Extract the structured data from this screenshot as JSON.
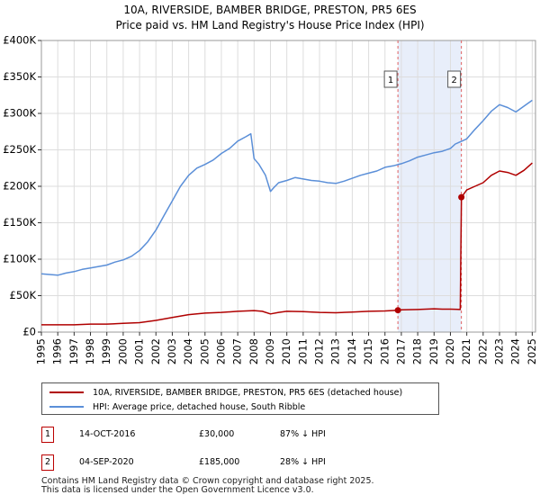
{
  "chart_data": {
    "type": "line",
    "title": "10A, RIVERSIDE, BAMBER BRIDGE, PRESTON, PR5 6ES",
    "subtitle": "Price paid vs. HM Land Registry's House Price Index (HPI)",
    "xlim": [
      1995,
      2025.2
    ],
    "ylim": [
      0,
      400000
    ],
    "x_ticks": [
      "1995",
      "1996",
      "1997",
      "1998",
      "1999",
      "2000",
      "2001",
      "2002",
      "2003",
      "2004",
      "2005",
      "2006",
      "2007",
      "2008",
      "2009",
      "2010",
      "2011",
      "2012",
      "2013",
      "2014",
      "2015",
      "2016",
      "2017",
      "2018",
      "2019",
      "2020",
      "2021",
      "2022",
      "2023",
      "2024",
      "2025"
    ],
    "y_ticks": [
      {
        "value": 0,
        "label": "£0"
      },
      {
        "value": 50000,
        "label": "£50K"
      },
      {
        "value": 100000,
        "label": "£100K"
      },
      {
        "value": 150000,
        "label": "£150K"
      },
      {
        "value": 200000,
        "label": "£200K"
      },
      {
        "value": 250000,
        "label": "£250K"
      },
      {
        "value": 300000,
        "label": "£300K"
      },
      {
        "value": 350000,
        "label": "£350K"
      },
      {
        "value": 400000,
        "label": "£400K"
      }
    ],
    "shaded_region": [
      2016.79,
      2020.67
    ],
    "series": [
      {
        "name": "HPI: Average price, detached house, South Ribble",
        "color": "#5b8fd8",
        "x": [
          1995,
          1995.5,
          1996,
          1996.5,
          1997,
          1997.5,
          1998,
          1998.5,
          1999,
          1999.5,
          2000,
          2000.5,
          2001,
          2001.5,
          2002,
          2002.5,
          2003,
          2003.5,
          2004,
          2004.5,
          2005,
          2005.5,
          2006,
          2006.5,
          2007,
          2007.5,
          2007.8,
          2008,
          2008.3,
          2008.7,
          2009,
          2009.2,
          2009.5,
          2010,
          2010.5,
          2011,
          2011.5,
          2012,
          2012.5,
          2013,
          2013.5,
          2014,
          2014.5,
          2015,
          2015.5,
          2016,
          2016.5,
          2017,
          2017.5,
          2018,
          2018.5,
          2019,
          2019.5,
          2020,
          2020.3,
          2020.7,
          2021,
          2021.5,
          2022,
          2022.5,
          2023,
          2023.5,
          2024,
          2024.5,
          2025
        ],
        "values": [
          80000,
          79000,
          78000,
          81000,
          83000,
          86000,
          88000,
          90000,
          92000,
          96000,
          99000,
          104000,
          112000,
          124000,
          140000,
          160000,
          180000,
          200000,
          215000,
          225000,
          230000,
          236000,
          245000,
          252000,
          262000,
          268000,
          272000,
          238000,
          230000,
          215000,
          193000,
          198000,
          205000,
          208000,
          212000,
          210000,
          208000,
          207000,
          205000,
          204000,
          207000,
          211000,
          215000,
          218000,
          221000,
          226000,
          228000,
          231000,
          235000,
          240000,
          243000,
          246000,
          248000,
          252000,
          258000,
          262000,
          265000,
          278000,
          290000,
          303000,
          312000,
          308000,
          302000,
          310000,
          318000
        ]
      },
      {
        "name": "10A, RIVERSIDE, BAMBER BRIDGE, PRESTON, PR5 6ES (detached house)",
        "color": "#b00000",
        "x": [
          1995,
          1996,
          1997,
          1998,
          1999,
          2000,
          2001,
          2002,
          2003,
          2004,
          2005,
          2006,
          2007,
          2008,
          2008.5,
          2009,
          2009.5,
          2010,
          2011,
          2012,
          2013,
          2014,
          2015,
          2016,
          2016.79,
          2017,
          2018,
          2019,
          2019.5,
          2020,
          2020.6,
          2020.67,
          2021,
          2021.5,
          2022,
          2022.5,
          2023,
          2023.5,
          2024,
          2024.5,
          2025
        ],
        "values": [
          10000,
          10000,
          10000,
          11000,
          11000,
          12000,
          13000,
          16000,
          20000,
          24000,
          26000,
          27000,
          28500,
          29500,
          28500,
          25000,
          27000,
          28500,
          28000,
          27000,
          26500,
          27500,
          28500,
          29000,
          30000,
          30500,
          31000,
          32000,
          31500,
          31500,
          31000,
          185000,
          195000,
          200000,
          205000,
          215000,
          221000,
          219000,
          215000,
          222000,
          232000
        ]
      }
    ],
    "markers": [
      {
        "id": "1",
        "x": 2016.79,
        "value": 30000
      },
      {
        "id": "2",
        "x": 2020.67,
        "value": 185000
      }
    ]
  },
  "legend": {
    "property_label": "10A, RIVERSIDE, BAMBER BRIDGE, PRESTON, PR5 6ES (detached house)",
    "hpi_label": "HPI: Average price, detached house, South Ribble"
  },
  "transactions": [
    {
      "badge": "1",
      "date": "14-OCT-2016",
      "price": "£30,000",
      "hpi": "87% ↓ HPI"
    },
    {
      "badge": "2",
      "date": "04-SEP-2020",
      "price": "£185,000",
      "hpi": "28% ↓ HPI"
    }
  ],
  "footer": {
    "line1": "Contains HM Land Registry data © Crown copyright and database right 2025.",
    "line2": "This data is licensed under the Open Government Licence v3.0."
  },
  "colors": {
    "property": "#b00000",
    "hpi": "#5b8fd8",
    "shade": "#e8eefa",
    "vline": "#e06060"
  }
}
